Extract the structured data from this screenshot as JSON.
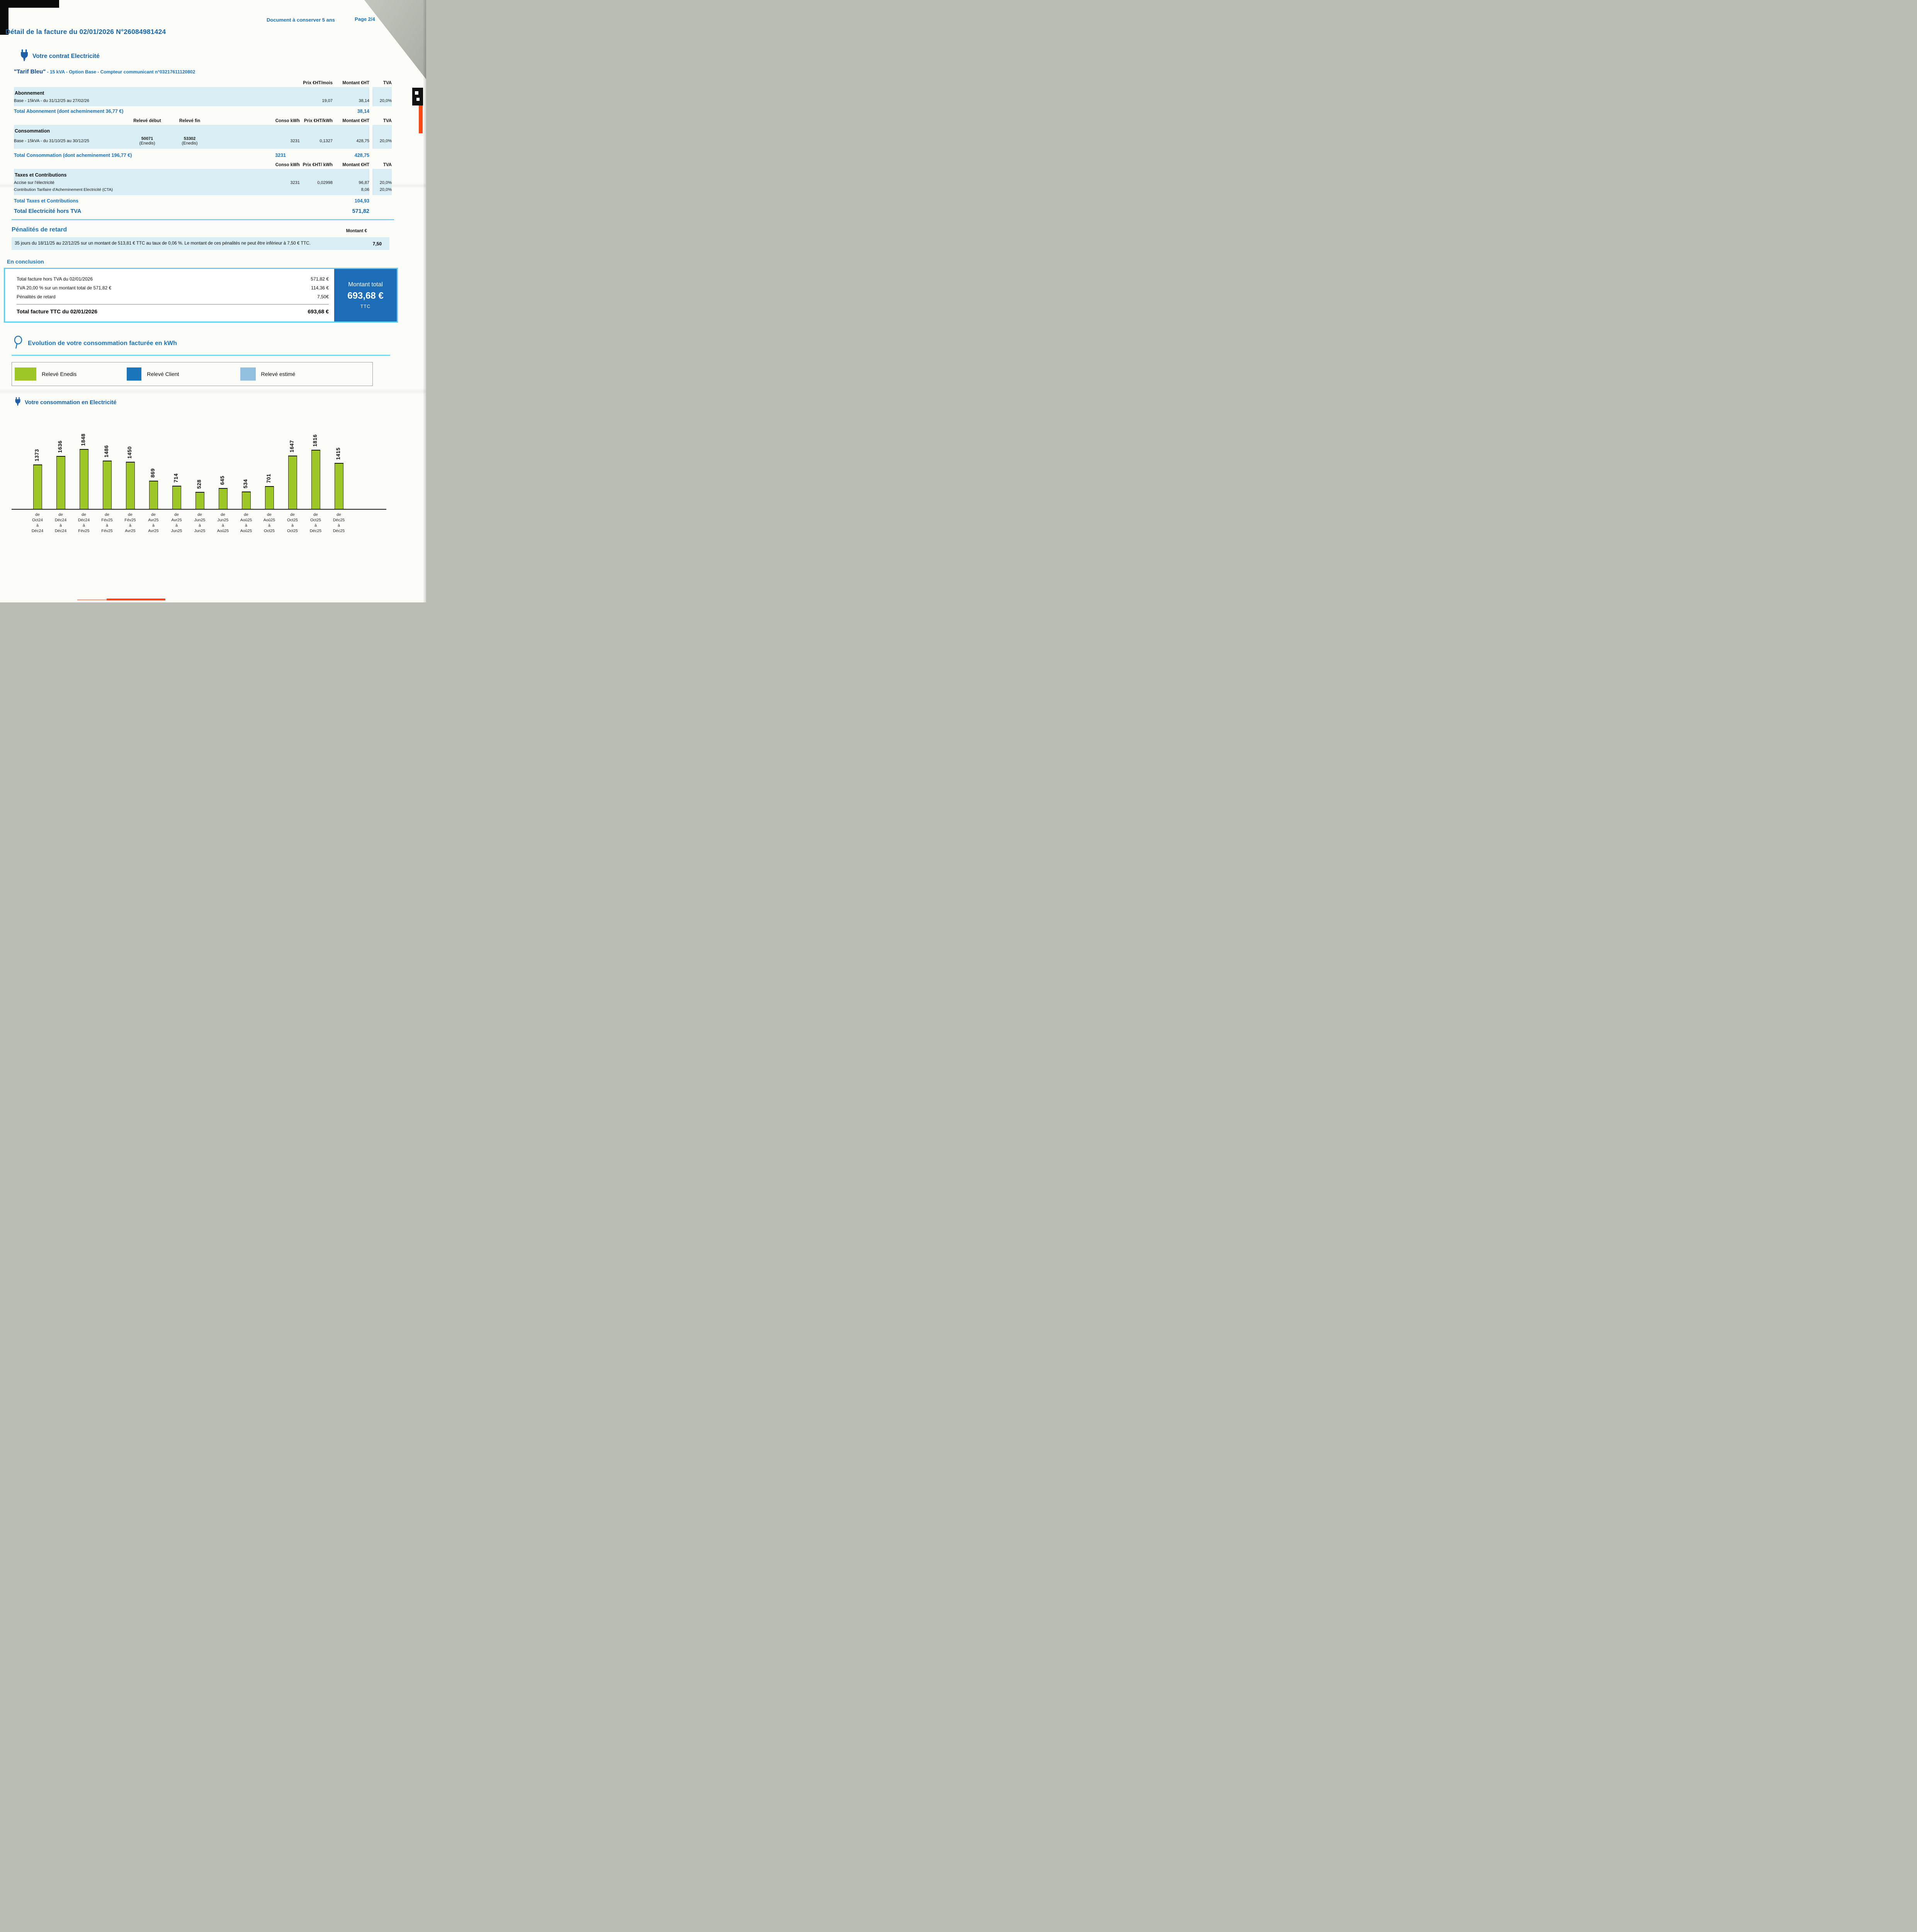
{
  "page": {
    "doc_note": "Document à conserver 5 ans",
    "page_label": "Page 2/4",
    "title": "Détail de la facture du 02/01/2026 N°26084981424"
  },
  "contract": {
    "section_title": "Votre contrat Electricité",
    "tariff_name": "\"Tarif Bleu\"",
    "tariff_details": " - 15 kVA - Option Base - Compteur communicant n°03217611120802"
  },
  "abonnement": {
    "headers": {
      "prix": "Prix €HT/mois",
      "montant": "Montant €HT",
      "tva": "TVA"
    },
    "section_label": "Abonnement",
    "row": {
      "label": "Base - 15kVA - du 31/12/25 au 27/02/26",
      "prix": "19,07",
      "montant": "38,14",
      "tva": "20,0%"
    },
    "total": {
      "label": "Total Abonnement (dont acheminement 36,77 €)",
      "montant": "38,14"
    }
  },
  "consommation": {
    "headers": {
      "releve_debut": "Relevé début",
      "releve_fin": "Relevé fin",
      "conso": "Conso kWh",
      "prix": "Prix €HT/kWh",
      "montant": "Montant €HT",
      "tva": "TVA"
    },
    "section_label": "Consommation",
    "row": {
      "label": "Base - 15kVA - du 31/10/25 au 30/12/25",
      "releve_debut": "50071",
      "releve_debut_src": "(Enedis)",
      "releve_fin": "53302",
      "releve_fin_src": "(Enedis)",
      "conso": "3231",
      "prix": "0,1327",
      "montant": "428,75",
      "tva": "20,0%"
    },
    "total": {
      "label": "Total Consommation (dont acheminement 196,77 €)",
      "conso": "3231",
      "montant": "428,75"
    }
  },
  "taxes": {
    "headers": {
      "conso": "Conso kWh",
      "prix": "Prix €HT/ kWh",
      "montant": "Montant €HT",
      "tva": "TVA"
    },
    "section_label": "Taxes et Contributions",
    "rows": [
      {
        "label": "Accise sur l'électricité",
        "conso": "3231",
        "prix": "0,02998",
        "montant": "96,87",
        "tva": "20,0%"
      },
      {
        "label": "Contribution Tarifaire d'Acheminement Electricité (CTA)",
        "conso": "",
        "prix": "",
        "montant": "8,06",
        "tva": "20,0%"
      }
    ],
    "total": {
      "label": "Total Taxes et Contributions",
      "montant": "104,93"
    },
    "total_electricite": {
      "label": "Total Electricité hors TVA",
      "montant": "571,82"
    }
  },
  "penalites": {
    "title": "Pénalités de retard",
    "montant_header": "Montant €",
    "text": "35 jours du 18/11/25 au 22/12/25 sur un montant de 513,81 € TTC au taux de 0,06 %. Le montant de ces pénalités ne peut être inférieur à 7,50 € TTC.",
    "value": "7,50"
  },
  "conclusion": {
    "title": "En conclusion",
    "rows": [
      {
        "label": "Total facture hors TVA du 02/01/2026",
        "value": "571,82 €"
      },
      {
        "label": "TVA 20,00 % sur un montant total de 571,82 €",
        "value": "114,36 €"
      },
      {
        "label": "Pénalités de retard",
        "value": "7,50€"
      }
    ],
    "total": {
      "label": "Total facture TTC du 02/01/2026",
      "value": "693,68 €"
    },
    "montant_panel": {
      "line1": "Montant total",
      "line2": "693,68 €",
      "line3": "TTC"
    }
  },
  "evolution": {
    "title": "Evolution de votre consommation facturée en kWh",
    "legend": [
      {
        "label": "Relevé Enedis",
        "color": "#9cc727",
        "width": 56
      },
      {
        "label": "Relevé Client",
        "color": "#1b75bb",
        "width": 38
      },
      {
        "label": "Relevé estimé",
        "color": "#90bfdf",
        "width": 40
      }
    ]
  },
  "consumption_section": {
    "title": "Votre consommation en Electricité"
  },
  "chart_data": {
    "type": "bar",
    "title": "Votre consommation en Electricité",
    "ylabel": "kWh",
    "bar_color": "#9cc727",
    "grid": false,
    "categories": [
      "de Oct24 à Déc24",
      "de Déc24 à Déc24",
      "de Déc24 à Fév25",
      "de Fév25 à Fév25",
      "de Fév25 à Avr25",
      "de Avr25 à Avr25",
      "de Avr25 à Jun25",
      "de Jun25 à Jun25",
      "de Jun25 à Aoû25",
      "de Aoû25 à Aoû25",
      "de Aoû25 à Oct25",
      "de Oct25 à Oct25",
      "de Oct25 à Déc25",
      "de Déc25 à Déc25"
    ],
    "label_lines": [
      [
        "de",
        "Oct24",
        "à",
        "Déc24"
      ],
      [
        "de",
        "Déc24",
        "à",
        "Déc24"
      ],
      [
        "de",
        "Déc24",
        "à",
        "Fév25"
      ],
      [
        "de",
        "Fév25",
        "à",
        "Fév25"
      ],
      [
        "de",
        "Fév25",
        "à",
        "Avr25"
      ],
      [
        "de",
        "Avr25",
        "à",
        "Avr25"
      ],
      [
        "de",
        "Avr25",
        "à",
        "Jun25"
      ],
      [
        "de",
        "Jun25",
        "à",
        "Jun25"
      ],
      [
        "de",
        "Jun25",
        "à",
        "Aoû25"
      ],
      [
        "de",
        "Aoû25",
        "à",
        "Aoû25"
      ],
      [
        "de",
        "Aoû25",
        "à",
        "Oct25"
      ],
      [
        "de",
        "Oct25",
        "à",
        "Oct25"
      ],
      [
        "de",
        "Oct25",
        "à",
        "Déc25"
      ],
      [
        "de",
        "Déc25",
        "à",
        "Déc25"
      ]
    ],
    "values": [
      1373,
      1636,
      1848,
      1486,
      1450,
      869,
      714,
      528,
      645,
      534,
      701,
      1647,
      1816,
      1415
    ],
    "ylim": [
      0,
      1900
    ]
  },
  "colors": {
    "heading_blue": "#1467ad",
    "total_blue": "#1b75bc",
    "band_light_blue": "#d8edf4",
    "rule_light_blue": "#7fd4ef",
    "montant_panel_blue": "#1d6cb8",
    "bar_green": "#9cc727",
    "artifact_orange": "#ff4712"
  }
}
